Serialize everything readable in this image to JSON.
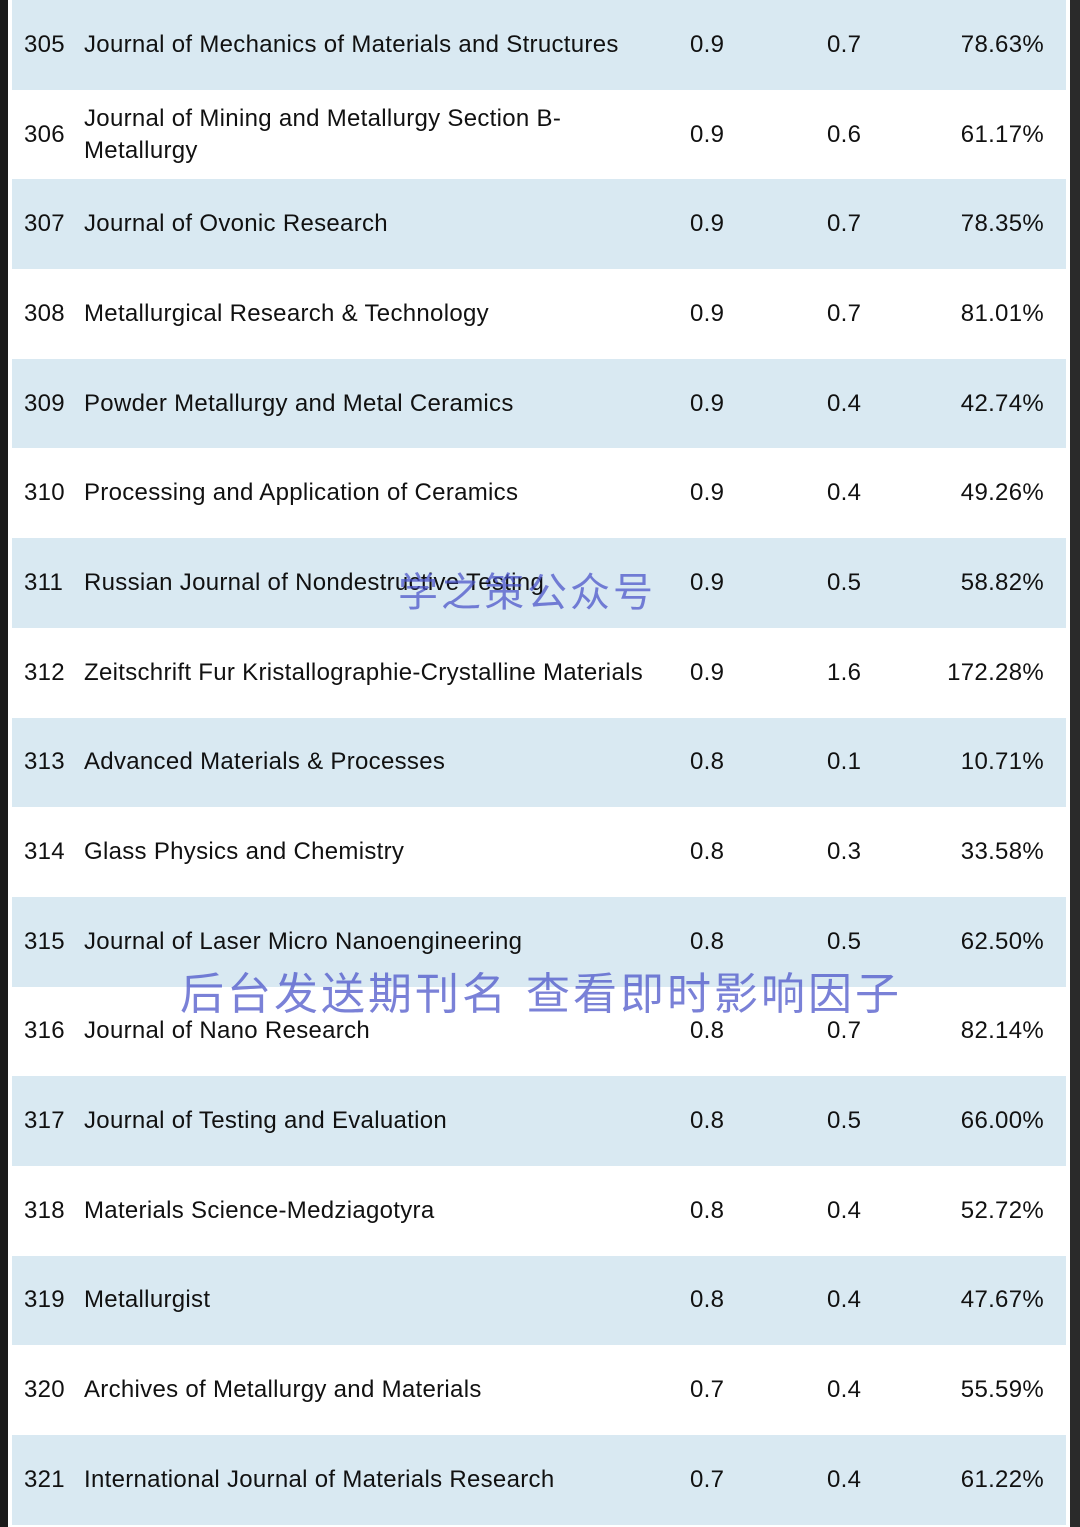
{
  "table": {
    "rows": [
      {
        "rank": "305",
        "title": "Journal of Mechanics of Materials and Structures",
        "v1": "0.9",
        "v2": "0.7",
        "pct": "78.63%"
      },
      {
        "rank": "306",
        "title": "Journal of Mining and Metallurgy Section B-Metallurgy",
        "v1": "0.9",
        "v2": "0.6",
        "pct": "61.17%"
      },
      {
        "rank": "307",
        "title": "Journal of Ovonic Research",
        "v1": "0.9",
        "v2": "0.7",
        "pct": "78.35%"
      },
      {
        "rank": "308",
        "title": "Metallurgical Research & Technology",
        "v1": "0.9",
        "v2": "0.7",
        "pct": "81.01%"
      },
      {
        "rank": "309",
        "title": "Powder Metallurgy and Metal Ceramics",
        "v1": "0.9",
        "v2": "0.4",
        "pct": "42.74%"
      },
      {
        "rank": "310",
        "title": "Processing and Application of Ceramics",
        "v1": "0.9",
        "v2": "0.4",
        "pct": "49.26%"
      },
      {
        "rank": "311",
        "title": "Russian Journal of Nondestructive Testing",
        "v1": "0.9",
        "v2": "0.5",
        "pct": "58.82%"
      },
      {
        "rank": "312",
        "title": "Zeitschrift Fur Kristallographie-Crystalline Materials",
        "v1": "0.9",
        "v2": "1.6",
        "pct": "172.28%"
      },
      {
        "rank": "313",
        "title": "Advanced Materials & Processes",
        "v1": "0.8",
        "v2": "0.1",
        "pct": "10.71%"
      },
      {
        "rank": "314",
        "title": "Glass Physics and Chemistry",
        "v1": "0.8",
        "v2": "0.3",
        "pct": "33.58%"
      },
      {
        "rank": "315",
        "title": "Journal of Laser Micro Nanoengineering",
        "v1": "0.8",
        "v2": "0.5",
        "pct": "62.50%"
      },
      {
        "rank": "316",
        "title": "Journal of Nano Research",
        "v1": "0.8",
        "v2": "0.7",
        "pct": "82.14%"
      },
      {
        "rank": "317",
        "title": "Journal of Testing and Evaluation",
        "v1": "0.8",
        "v2": "0.5",
        "pct": "66.00%"
      },
      {
        "rank": "318",
        "title": "Materials Science-Medziagotyra",
        "v1": "0.8",
        "v2": "0.4",
        "pct": "52.72%"
      },
      {
        "rank": "319",
        "title": "Metallurgist",
        "v1": "0.8",
        "v2": "0.4",
        "pct": "47.67%"
      },
      {
        "rank": "320",
        "title": "Archives of Metallurgy and Materials",
        "v1": "0.7",
        "v2": "0.4",
        "pct": "55.59%"
      },
      {
        "rank": "321",
        "title": "International Journal of Materials Research",
        "v1": "0.7",
        "v2": "0.4",
        "pct": "61.22%"
      }
    ]
  },
  "watermarks": {
    "top": "学之策公众号",
    "bottom": "后台发送期刊名 查看即时影响因子"
  }
}
